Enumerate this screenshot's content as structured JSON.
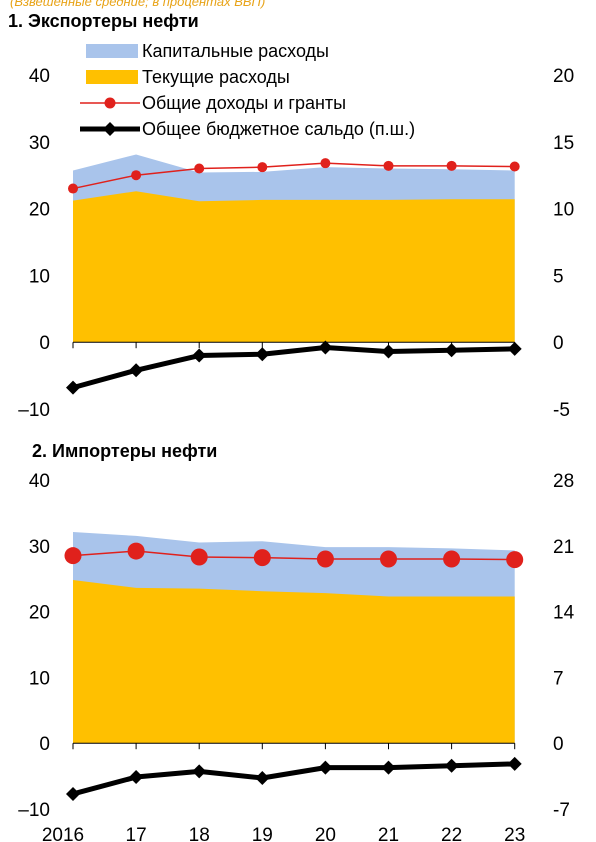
{
  "header": {
    "subtitle": "(Взвешенные средние; в процентах ВВП)"
  },
  "legend": {
    "items": [
      {
        "label": "Капитальные расходы",
        "type": "area",
        "color": "#A9C4EB"
      },
      {
        "label": "Текущие расходы",
        "type": "area",
        "color": "#FFC000"
      },
      {
        "label": "Общие доходы и гранты",
        "type": "line-marker",
        "color": "#E0211C"
      },
      {
        "label": "Общее бюджетное сальдо (п.ш.)",
        "type": "line-marker-thick",
        "color": "#000000"
      }
    ]
  },
  "chart_data": [
    {
      "type": "area",
      "title": "1. Экспортеры нефти",
      "categories": [
        "2016",
        "17",
        "18",
        "19",
        "20",
        "21",
        "22",
        "23"
      ],
      "ylim": [
        -10,
        40
      ],
      "yticks": [
        "–10",
        "0",
        "10",
        "20",
        "30",
        "40"
      ],
      "y2lim": [
        -5,
        20
      ],
      "y2ticks": [
        "-5",
        "0",
        "5",
        "10",
        "15",
        "20"
      ],
      "series": [
        {
          "name": "Текущие расходы",
          "axis": "left",
          "kind": "area",
          "color": "#FFC000",
          "values": [
            21.2,
            22.6,
            21.1,
            21.3,
            21.3,
            21.3,
            21.4,
            21.4
          ]
        },
        {
          "name": "Капитальные расходы",
          "axis": "left",
          "kind": "area-stacked",
          "color": "#A9C4EB",
          "values": [
            4.5,
            5.5,
            4.3,
            4.2,
            4.9,
            4.7,
            4.5,
            4.3
          ]
        },
        {
          "name": "Общие доходы и гранты",
          "axis": "left",
          "kind": "line",
          "color": "#E0211C",
          "values": [
            23.0,
            25.0,
            26.0,
            26.2,
            26.8,
            26.4,
            26.4,
            26.3
          ]
        },
        {
          "name": "Общее бюджетное сальдо (п.ш.)",
          "axis": "right",
          "kind": "line-thick",
          "color": "#000000",
          "values": [
            -3.4,
            -2.1,
            -1.0,
            -0.9,
            -0.4,
            -0.7,
            -0.6,
            -0.5
          ]
        }
      ]
    },
    {
      "type": "area",
      "title": "2. Импортеры нефти",
      "categories": [
        "2016",
        "17",
        "18",
        "19",
        "20",
        "21",
        "22",
        "23"
      ],
      "ylim": [
        -10,
        40
      ],
      "yticks": [
        "–10",
        "0",
        "10",
        "20",
        "30",
        "40"
      ],
      "y2lim": [
        -7,
        28
      ],
      "y2ticks": [
        "-7",
        "0",
        "7",
        "14",
        "21",
        "28"
      ],
      "series": [
        {
          "name": "Текущие расходы",
          "axis": "left",
          "kind": "area",
          "color": "#FFC000",
          "values": [
            24.8,
            23.6,
            23.5,
            23.1,
            22.8,
            22.3,
            22.3,
            22.3
          ]
        },
        {
          "name": "Капитальные расходы",
          "axis": "left",
          "kind": "area-stacked",
          "color": "#A9C4EB",
          "values": [
            7.3,
            7.9,
            7.0,
            7.6,
            7.0,
            7.5,
            7.3,
            7.0
          ]
        },
        {
          "name": "Общие доходы и гранты",
          "axis": "left",
          "kind": "line-big-marker",
          "color": "#E0211C",
          "values": [
            28.5,
            29.2,
            28.3,
            28.2,
            28.0,
            28.0,
            28.0,
            27.9
          ]
        },
        {
          "name": "Общее бюджетное сальдо (п.ш.)",
          "axis": "right",
          "kind": "line-thick",
          "color": "#000000",
          "values": [
            -5.4,
            -3.6,
            -3.0,
            -3.7,
            -2.6,
            -2.6,
            -2.4,
            -2.2
          ]
        }
      ]
    }
  ]
}
